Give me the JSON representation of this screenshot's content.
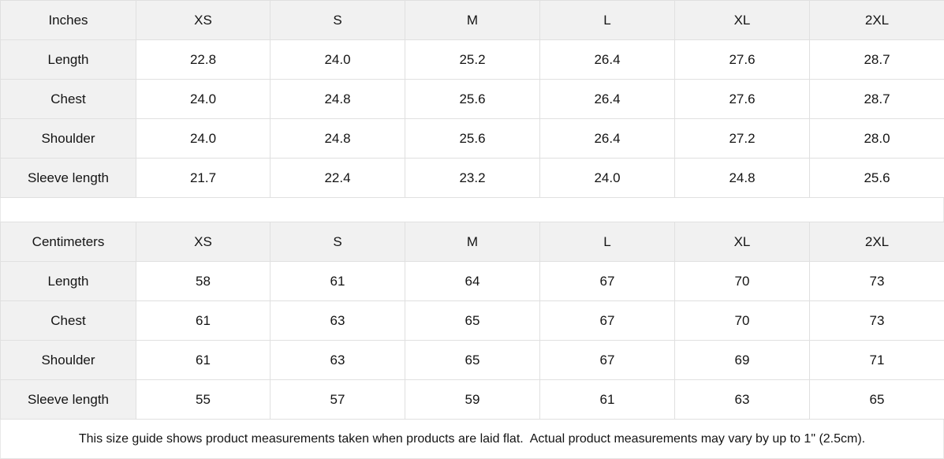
{
  "colors": {
    "header_bg": "#f1f1f1",
    "cell_bg": "#ffffff",
    "border": "#e0e0e0",
    "text": "#141414"
  },
  "tables": [
    {
      "unit_label": "Inches",
      "sizes": [
        "XS",
        "S",
        "M",
        "L",
        "XL",
        "2XL"
      ],
      "rows": [
        {
          "label": "Length",
          "values": [
            "22.8",
            "24.0",
            "25.2",
            "26.4",
            "27.6",
            "28.7"
          ]
        },
        {
          "label": "Chest",
          "values": [
            "24.0",
            "24.8",
            "25.6",
            "26.4",
            "27.6",
            "28.7"
          ]
        },
        {
          "label": "Shoulder",
          "values": [
            "24.0",
            "24.8",
            "25.6",
            "26.4",
            "27.2",
            "28.0"
          ]
        },
        {
          "label": "Sleeve length",
          "values": [
            "21.7",
            "22.4",
            "23.2",
            "24.0",
            "24.8",
            "25.6"
          ]
        }
      ]
    },
    {
      "unit_label": "Centimeters",
      "sizes": [
        "XS",
        "S",
        "M",
        "L",
        "XL",
        "2XL"
      ],
      "rows": [
        {
          "label": "Length",
          "values": [
            "58",
            "61",
            "64",
            "67",
            "70",
            "73"
          ]
        },
        {
          "label": "Chest",
          "values": [
            "61",
            "63",
            "65",
            "67",
            "70",
            "73"
          ]
        },
        {
          "label": "Shoulder",
          "values": [
            "61",
            "63",
            "65",
            "67",
            "69",
            "71"
          ]
        },
        {
          "label": "Sleeve length",
          "values": [
            "55",
            "57",
            "59",
            "61",
            "63",
            "65"
          ]
        }
      ]
    }
  ],
  "footer": {
    "note": "This size guide shows product measurements taken when products are laid flat.  Actual product measurements may vary by up to 1\" (2.5cm)."
  }
}
